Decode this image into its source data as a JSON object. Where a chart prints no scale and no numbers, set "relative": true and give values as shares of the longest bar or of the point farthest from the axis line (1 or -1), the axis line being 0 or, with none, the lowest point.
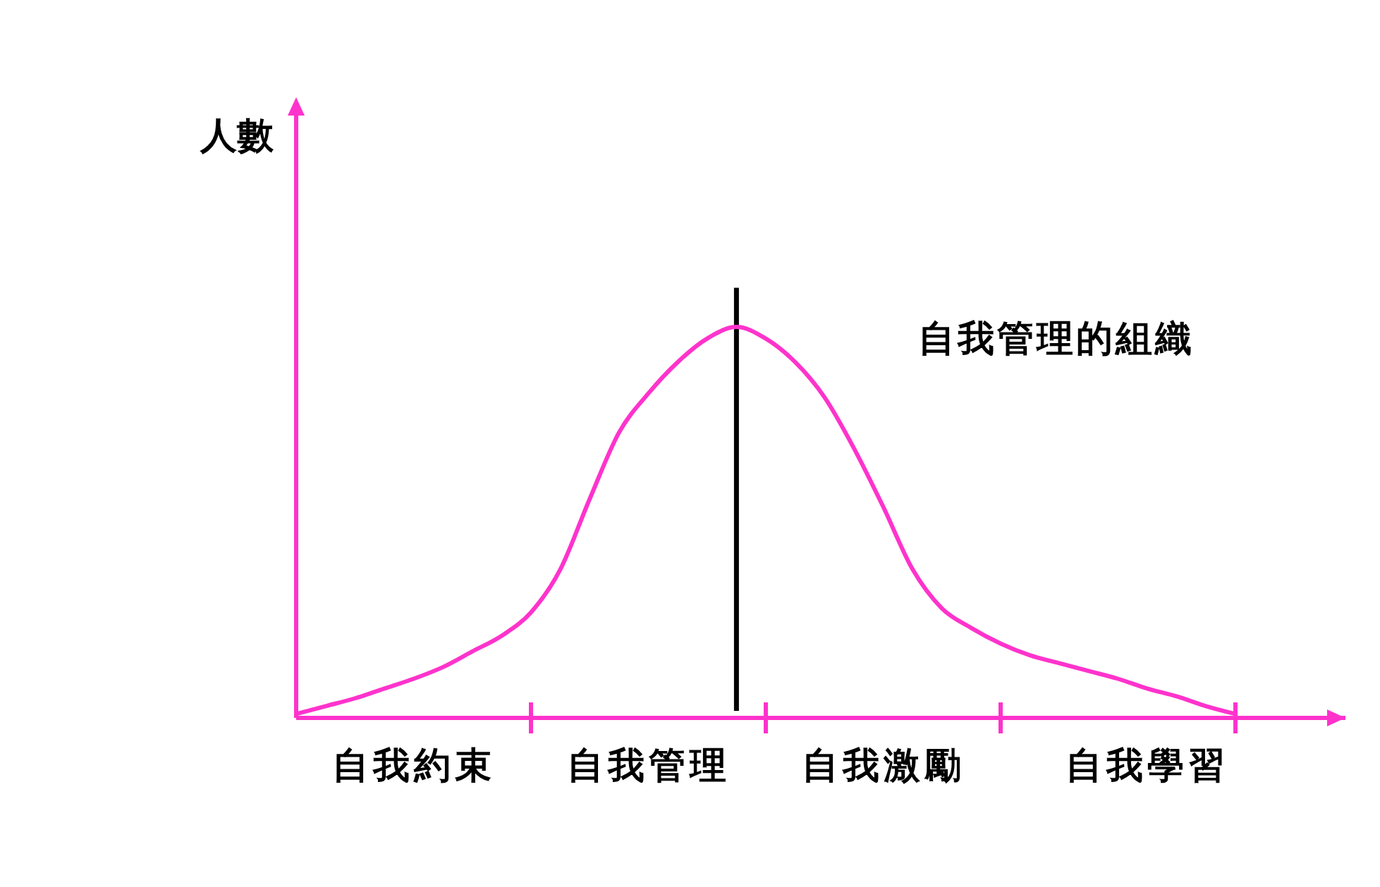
{
  "chart_data": {
    "type": "line",
    "relative": true,
    "ylabel": "人數",
    "annotations": [
      "自我管理的組織"
    ],
    "categories": [
      null,
      null,
      null,
      null,
      "自我約束",
      null,
      null,
      null,
      null,
      null,
      null,
      null,
      "自我管理",
      null,
      null,
      null,
      null,
      null,
      null,
      null,
      "自我激勵",
      null,
      null,
      null,
      null,
      null,
      null,
      null,
      null,
      "自我學習",
      null,
      null,
      null
    ],
    "series": [
      {
        "color": "#ff33cc",
        "values": [
          0.01,
          0.03,
          0.05,
          0.075,
          0.1,
          0.13,
          0.17,
          0.21,
          0.27,
          0.38,
          0.56,
          0.73,
          0.83,
          0.91,
          0.97,
          1.0,
          0.97,
          0.91,
          0.82,
          0.69,
          0.54,
          0.38,
          0.28,
          0.23,
          0.19,
          0.16,
          0.14,
          0.12,
          0.1,
          0.075,
          0.055,
          0.03,
          0.01
        ]
      }
    ],
    "marker": "none",
    "line_style": "solid"
  }
}
